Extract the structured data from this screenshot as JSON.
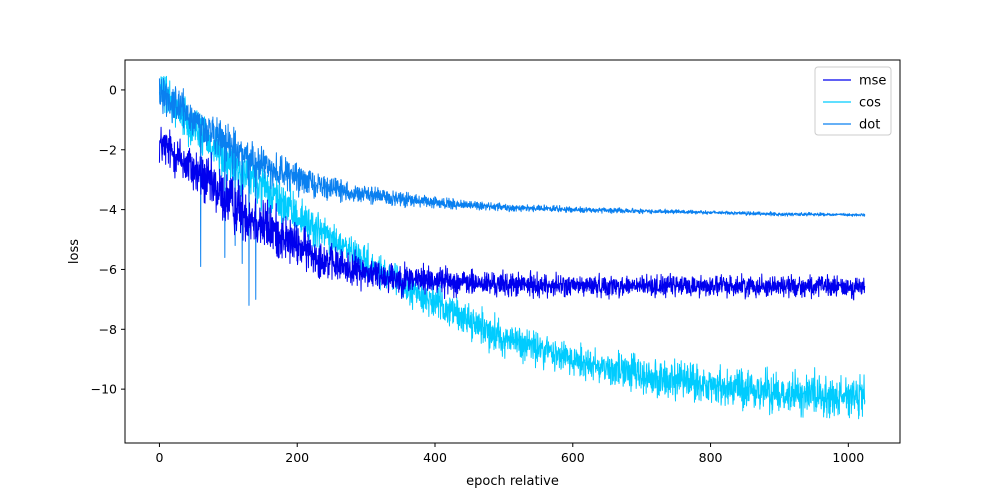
{
  "chart_data": {
    "type": "line",
    "title": "",
    "xlabel": "epoch relative",
    "ylabel": "loss",
    "xlim": [
      -50,
      1075
    ],
    "ylim": [
      -11.8,
      1.0
    ],
    "x_ticks": [
      0,
      200,
      400,
      600,
      800,
      1000
    ],
    "y_ticks": [
      0,
      -2,
      -4,
      -6,
      -8,
      -10
    ],
    "x_range": [
      0,
      1024
    ],
    "grid": false,
    "legend_position": "top-right",
    "series": [
      {
        "name": "mse",
        "color": "#0000ee",
        "trend_x": [
          0,
          20,
          50,
          100,
          150,
          200,
          250,
          300,
          350,
          400,
          450,
          500,
          600,
          700,
          800,
          900,
          1024
        ],
        "trend_y": [
          -1.8,
          -2.1,
          -2.7,
          -3.7,
          -4.5,
          -5.2,
          -5.8,
          -6.1,
          -6.3,
          -6.35,
          -6.45,
          -6.5,
          -6.55,
          -6.55,
          -6.55,
          -6.55,
          -6.6
        ],
        "noise_band": [
          0.6,
          0.6,
          0.7,
          0.8,
          0.8,
          0.6,
          0.5,
          0.45,
          0.45,
          0.4,
          0.35,
          0.35,
          0.3,
          0.3,
          0.3,
          0.3,
          0.3
        ]
      },
      {
        "name": "cos",
        "color": "#00ccff",
        "trend_x": [
          0,
          50,
          100,
          150,
          200,
          250,
          300,
          350,
          400,
          450,
          500,
          600,
          700,
          800,
          900,
          1024
        ],
        "trend_y": [
          0.0,
          -1.2,
          -2.4,
          -3.3,
          -4.2,
          -5.0,
          -5.8,
          -6.5,
          -7.1,
          -7.7,
          -8.3,
          -9.0,
          -9.55,
          -9.9,
          -10.1,
          -10.3
        ],
        "noise_band": [
          0.5,
          0.6,
          0.7,
          0.6,
          0.55,
          0.5,
          0.45,
          0.45,
          0.45,
          0.45,
          0.5,
          0.5,
          0.55,
          0.55,
          0.55,
          0.6
        ]
      },
      {
        "name": "dot",
        "color": "#0a80f0",
        "trend_x": [
          0,
          50,
          100,
          150,
          200,
          250,
          300,
          350,
          400,
          450,
          500,
          600,
          700,
          800,
          900,
          1024
        ],
        "trend_y": [
          0.0,
          -1.0,
          -1.9,
          -2.5,
          -2.95,
          -3.3,
          -3.5,
          -3.65,
          -3.78,
          -3.85,
          -3.92,
          -4.0,
          -4.05,
          -4.1,
          -4.15,
          -4.18
        ],
        "noise_band": [
          0.5,
          0.5,
          0.55,
          0.5,
          0.4,
          0.3,
          0.25,
          0.2,
          0.15,
          0.12,
          0.1,
          0.08,
          0.06,
          0.05,
          0.05,
          0.04
        ],
        "spikes": [
          [
            60,
            -5.9
          ],
          [
            95,
            -5.6
          ],
          [
            110,
            -5.2
          ],
          [
            130,
            -7.2
          ],
          [
            140,
            -7.0
          ],
          [
            120,
            -5.8
          ]
        ]
      }
    ]
  }
}
